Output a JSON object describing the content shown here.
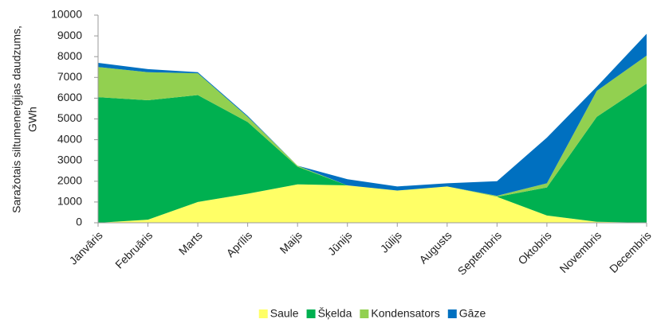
{
  "chart_data": {
    "type": "stacked_area",
    "ylabel": [
      "Saražotais siltumenerģijas daudzums,",
      "GWh"
    ],
    "categories": [
      "Janvāris",
      "Februāris",
      "Marts",
      "Aprīlis",
      "Maijs",
      "Jūnijs",
      "Jūlijs",
      "Augusts",
      "Septembris",
      "Oktobris",
      "Novembris",
      "Decembris"
    ],
    "series": [
      {
        "name": "Saule",
        "color": "#ffff66",
        "values": [
          0,
          150,
          1000,
          1400,
          1850,
          1800,
          1550,
          1750,
          1250,
          350,
          50,
          0
        ]
      },
      {
        "name": "Šķelda",
        "color": "#00b050",
        "values": [
          6050,
          5750,
          5150,
          3450,
          850,
          0,
          0,
          0,
          0,
          1350,
          5050,
          6700
        ]
      },
      {
        "name": "Kondensators",
        "color": "#92d050",
        "values": [
          1450,
          1350,
          1050,
          250,
          50,
          0,
          0,
          0,
          50,
          200,
          1250,
          1350
        ]
      },
      {
        "name": "Gāze",
        "color": "#0070c0",
        "values": [
          200,
          150,
          50,
          50,
          0,
          300,
          200,
          150,
          700,
          2200,
          200,
          1050
        ]
      }
    ],
    "ylim": [
      0,
      10000
    ],
    "yticks": [
      0,
      1000,
      2000,
      3000,
      4000,
      5000,
      6000,
      7000,
      8000,
      9000,
      10000
    ],
    "grid": false,
    "legend": "bottom"
  }
}
